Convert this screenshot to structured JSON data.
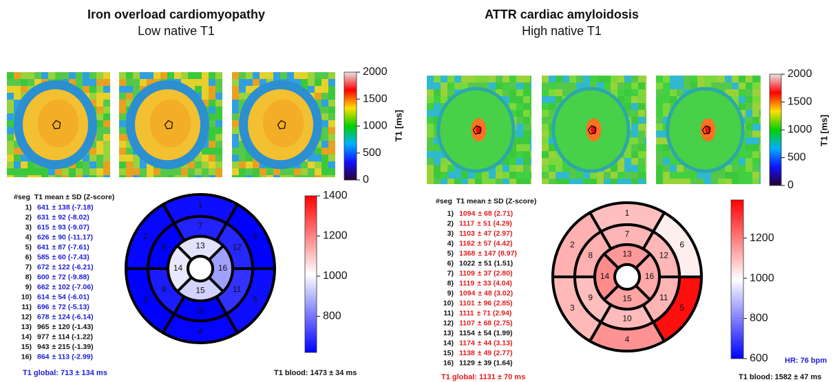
{
  "panels": [
    {
      "title": "Iron overload cardiomyopathy",
      "subtitle": "Low native T1",
      "map_colorbar": {
        "label": "T1 [ms]",
        "lim": [
          0,
          2000
        ],
        "ticks": [
          0,
          500,
          1000,
          1500,
          2000
        ],
        "colors": [
          "#2a0033",
          "#1010ff",
          "#00b0ff",
          "#00d000",
          "#ffe000",
          "#ff0000",
          "#e6e6e6"
        ]
      },
      "table_header": "#seg  T1 mean ± SD (Z-score)",
      "segments": [
        {
          "label": "1)",
          "mean": 641,
          "detail": "± 138 (-7.18)",
          "color": "#1c1cd8"
        },
        {
          "label": "2)",
          "mean": 631,
          "detail": "± 92 (-8.02)",
          "color": "#1c1cd8"
        },
        {
          "label": "3)",
          "mean": 615,
          "detail": "± 93 (-9.07)",
          "color": "#1c1cd8"
        },
        {
          "label": "4)",
          "mean": 626,
          "detail": "± 90 (-11.17)",
          "color": "#1c1cd8"
        },
        {
          "label": "5)",
          "mean": 641,
          "detail": "± 87 (-7.61)",
          "color": "#1c1cd8"
        },
        {
          "label": "6)",
          "mean": 585,
          "detail": "± 60 (-7.43)",
          "color": "#1c1cd8"
        },
        {
          "label": "7)",
          "mean": 672,
          "detail": "± 122 (-6.21)",
          "color": "#1c1cd8"
        },
        {
          "label": "8)",
          "mean": 600,
          "detail": "± 72 (-9.88)",
          "color": "#1c1cd8"
        },
        {
          "label": "9)",
          "mean": 662,
          "detail": "± 102 (-7.06)",
          "color": "#1c1cd8"
        },
        {
          "label": "10)",
          "mean": 614,
          "detail": "± 54 (-6.01)",
          "color": "#1c1cd8"
        },
        {
          "label": "11)",
          "mean": 696,
          "detail": "± 72 (-5.13)",
          "color": "#1c1cd8"
        },
        {
          "label": "12)",
          "mean": 678,
          "detail": "± 124 (-6.14)",
          "color": "#1c1cd8"
        },
        {
          "label": "13)",
          "mean": 965,
          "detail": "± 120 (-1.43)",
          "color": "#111111"
        },
        {
          "label": "14)",
          "mean": 977,
          "detail": "± 114 (-1.22)",
          "color": "#111111"
        },
        {
          "label": "15)",
          "mean": 943,
          "detail": "± 215 (-1.39)",
          "color": "#111111"
        },
        {
          "label": "16)",
          "mean": 864,
          "detail": "± 113 (-2.99)",
          "color": "#1c1cd8"
        }
      ],
      "bullseye": {
        "labels": [
          "1",
          "2",
          "3",
          "4",
          "5",
          "6",
          "7",
          "8",
          "9",
          "10",
          "11",
          "12",
          "13",
          "14",
          "15",
          "16"
        ],
        "lim": [
          620,
          1400
        ],
        "ticks": [
          800,
          1000,
          1200,
          1400
        ],
        "colors": [
          "#0000ff",
          "#ffffff",
          "#ff0000"
        ]
      },
      "global": {
        "text": "T1 global: 713 ± 134 ms",
        "color": "#1c1cd8"
      },
      "blood": "T1 blood: 1473 ± 34 ms"
    },
    {
      "title": "ATTR cardiac amyloidosis",
      "subtitle": "High native T1",
      "map_colorbar": {
        "label": "T1 [ms]",
        "lim": [
          0,
          2000
        ],
        "ticks": [
          0,
          500,
          1000,
          1500,
          2000
        ],
        "colors": [
          "#2a0033",
          "#1010ff",
          "#00b0ff",
          "#00d000",
          "#ffe000",
          "#ff0000",
          "#e6e6e6"
        ]
      },
      "table_header": "#seg  T1 mean ± SD (Z-score)",
      "segments": [
        {
          "label": "1)",
          "mean": 1094,
          "detail": "± 68 (2.71)",
          "color": "#e41a1c"
        },
        {
          "label": "2)",
          "mean": 1117,
          "detail": "± 51 (4.29)",
          "color": "#e41a1c"
        },
        {
          "label": "3)",
          "mean": 1103,
          "detail": "± 47 (2.97)",
          "color": "#e41a1c"
        },
        {
          "label": "4)",
          "mean": 1162,
          "detail": "± 57 (4.42)",
          "color": "#e41a1c"
        },
        {
          "label": "5)",
          "mean": 1368,
          "detail": "± 147 (8.97)",
          "color": "#e41a1c"
        },
        {
          "label": "6)",
          "mean": 1022,
          "detail": "± 51 (1.51)",
          "color": "#111111"
        },
        {
          "label": "7)",
          "mean": 1109,
          "detail": "± 37 (2.80)",
          "color": "#e41a1c"
        },
        {
          "label": "8)",
          "mean": 1119,
          "detail": "± 33 (4.04)",
          "color": "#e41a1c"
        },
        {
          "label": "9)",
          "mean": 1094,
          "detail": "± 48 (3.02)",
          "color": "#e41a1c"
        },
        {
          "label": "10)",
          "mean": 1101,
          "detail": "± 96 (2.85)",
          "color": "#e41a1c"
        },
        {
          "label": "11)",
          "mean": 1111,
          "detail": "± 71 (2.94)",
          "color": "#e41a1c"
        },
        {
          "label": "12)",
          "mean": 1107,
          "detail": "± 68 (2.75)",
          "color": "#e41a1c"
        },
        {
          "label": "13)",
          "mean": 1154,
          "detail": "± 54 (1.99)",
          "color": "#111111"
        },
        {
          "label": "14)",
          "mean": 1174,
          "detail": "± 44 (3.13)",
          "color": "#e41a1c"
        },
        {
          "label": "15)",
          "mean": 1138,
          "detail": "± 49 (2.77)",
          "color": "#e41a1c"
        },
        {
          "label": "16)",
          "mean": 1129,
          "detail": "± 39 (1.64)",
          "color": "#111111"
        }
      ],
      "bullseye": {
        "labels": [
          "1",
          "2",
          "3",
          "4",
          "5",
          "6",
          "7",
          "8",
          "9",
          "10",
          "11",
          "12",
          "13",
          "14",
          "15",
          "16"
        ],
        "lim": [
          600,
          1390
        ],
        "ticks": [
          600,
          800,
          1000,
          1200
        ],
        "colors": [
          "#0000ff",
          "#ffffff",
          "#ff0000"
        ]
      },
      "global": {
        "text": "T1 global: 1131 ± 70 ms",
        "color": "#e41a1c"
      },
      "blood": "T1 blood: 1582 ± 47 ms",
      "hr": {
        "text": "HR: 76 bpm",
        "color": "#1c1cd8"
      }
    }
  ]
}
